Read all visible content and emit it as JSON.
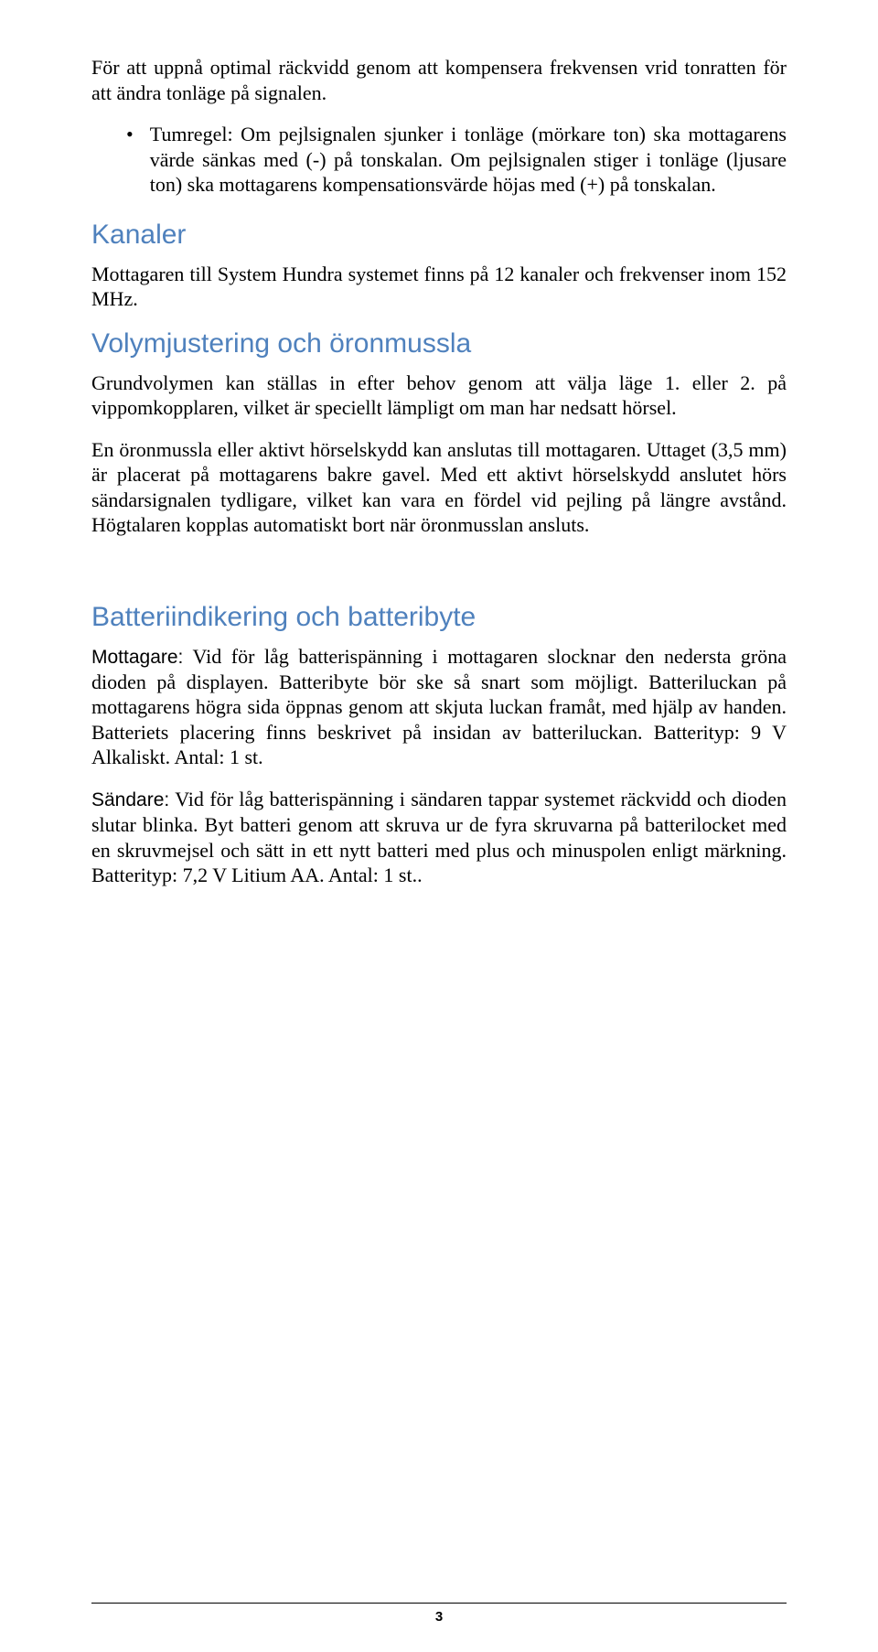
{
  "intro": "För att uppnå optimal räckvidd genom att kompensera frekvensen vrid tonratten för att ändra tonläge på signalen.",
  "bullet": "Tumregel: Om pejlsignalen sjunker i tonläge (mörkare ton) ska mottagarens värde sänkas med (-) på tonskalan. Om pejlsignalen stiger i tonläge (ljusare ton) ska mottagarens kompensationsvärde höjas med (+) på tonskalan.",
  "kanaler": {
    "heading": "Kanaler",
    "p": "Mottagaren till System Hundra systemet finns på 12 kanaler och frekvenser inom 152 MHz."
  },
  "volym": {
    "heading": "Volymjustering och öronmussla",
    "p1": "Grundvolymen kan ställas in efter behov genom att välja läge 1. eller 2. på vippomkopplaren, vilket är speciellt lämpligt om man har nedsatt hörsel.",
    "p2": "En öronmussla eller aktivt hörselskydd kan anslutas till mottagaren. Uttaget (3,5 mm) är placerat på mottagarens bakre gavel. Med ett aktivt hörselskydd anslutet hörs sändarsignalen tydligare, vilket kan vara en fördel vid pejling på längre avstånd. Högtalaren kopplas automatiskt bort när öronmusslan ansluts."
  },
  "batteri": {
    "heading": "Batteriindikering och batteribyte",
    "mottagare_label": "Mottagare:",
    "mottagare_text": " Vid för låg batterispänning i mottagaren slocknar den nedersta gröna dioden på displayen. Batteribyte bör ske så snart som möjligt. Batteriluckan på mottagarens högra sida öppnas genom att skjuta luckan framåt, med hjälp av handen. Batteriets placering finns beskrivet på insidan av batteriluckan. Batterityp: 9 V Alkaliskt. Antal: 1 st.",
    "sandare_label": "Sändare:",
    "sandare_text": " Vid för låg batterispänning i sändaren tappar systemet räckvidd och dioden slutar blinka. Byt batteri genom att skruva ur de fyra skruvarna på batterilocket med en skruvmejsel och sätt in ett nytt batteri med plus och minuspolen enligt märkning.  Batterityp: 7,2 V Litium AA. Antal: 1 st.."
  },
  "page_number": "3"
}
